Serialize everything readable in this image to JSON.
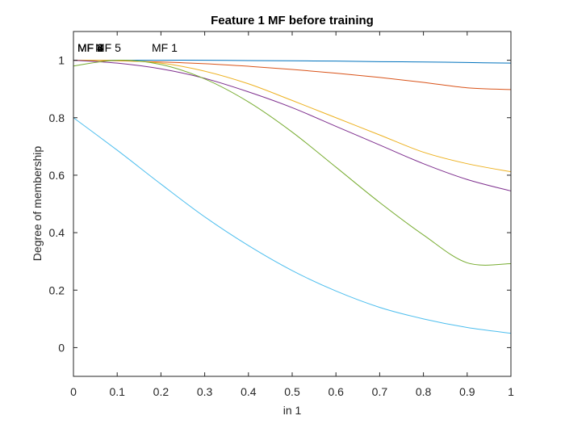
{
  "chart_data": {
    "type": "line",
    "title": "Feature  1 MF before training",
    "xlabel": "in 1",
    "ylabel": "Degree of membership",
    "xlim": [
      0,
      1
    ],
    "ylim": [
      -0.1,
      1.1
    ],
    "xticks": [
      0,
      0.1,
      0.2,
      0.3,
      0.4,
      0.5,
      0.6,
      0.7,
      0.8,
      0.9,
      1
    ],
    "xtick_labels": [
      "0",
      "0.1",
      "0.2",
      "0.3",
      "0.4",
      "0.5",
      "0.6",
      "0.7",
      "0.8",
      "0.9",
      "1"
    ],
    "yticks": [
      0,
      0.2,
      0.4,
      0.6,
      0.8,
      1
    ],
    "ytick_labels": [
      "0",
      "0.2",
      "0.4",
      "0.6",
      "0.8",
      "1"
    ],
    "grid": false,
    "legend": "none",
    "x": [
      0,
      0.1,
      0.2,
      0.3,
      0.4,
      0.5,
      0.6,
      0.7,
      0.8,
      0.9,
      1
    ],
    "series": [
      {
        "color": "#0072BD",
        "values": [
          1.0,
          1.0,
          1.0,
          1.0,
          0.999,
          0.998,
          0.997,
          0.995,
          0.994,
          0.992,
          0.99
        ]
      },
      {
        "color": "#D95319",
        "values": [
          1.0,
          0.998,
          0.994,
          0.988,
          0.979,
          0.968,
          0.955,
          0.94,
          0.923,
          0.904,
          0.898
        ]
      },
      {
        "color": "#EDB120",
        "values": [
          1.0,
          0.999,
          0.99,
          0.962,
          0.918,
          0.86,
          0.8,
          0.74,
          0.68,
          0.64,
          0.612
        ]
      },
      {
        "color": "#7E2F8E",
        "values": [
          1.0,
          0.99,
          0.97,
          0.937,
          0.89,
          0.835,
          0.77,
          0.705,
          0.64,
          0.585,
          0.545
        ]
      },
      {
        "color": "#77AC30",
        "values": [
          0.98,
          1.0,
          0.985,
          0.935,
          0.855,
          0.75,
          0.628,
          0.505,
          0.392,
          0.295,
          0.292
        ]
      },
      {
        "color": "#4DBEEE",
        "values": [
          0.8,
          0.687,
          0.569,
          0.455,
          0.355,
          0.268,
          0.197,
          0.14,
          0.1,
          0.07,
          0.05
        ]
      }
    ],
    "mf_labels": [
      {
        "text": "MF 1",
        "x": 0.7,
        "y": 1.05
      },
      {
        "text": "MF 2",
        "x": 0.7,
        "y": 1.05
      },
      {
        "text": "MF 3",
        "x": 0.7,
        "y": 1.05
      },
      {
        "text": "MF 4",
        "x": 0.7,
        "y": 1.05
      },
      {
        "text": "MF 5",
        "x": 0.7,
        "y": 1.05
      },
      {
        "text": "MF 6",
        "x": 0.7,
        "y": 1.05
      }
    ]
  }
}
